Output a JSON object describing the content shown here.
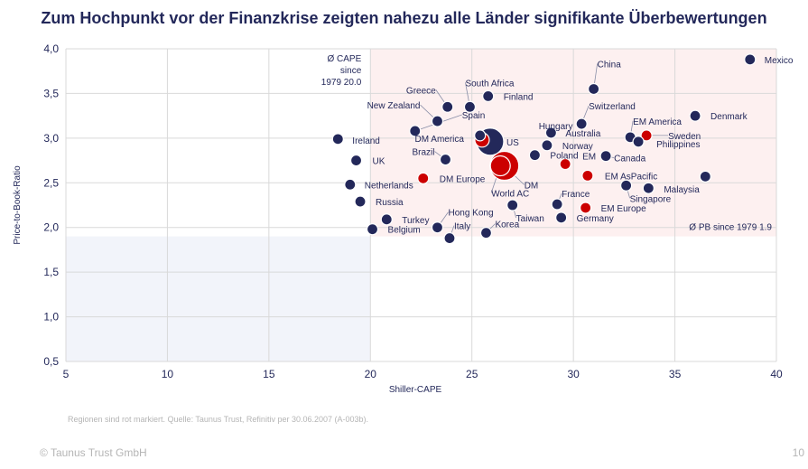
{
  "title": "Zum Hochpunkt vor der Finanzkrise zeigten nahezu alle Länder signifikante Überbewertungen",
  "source_note": "Regionen sind rot markiert. Quelle: Taunus Trust, Refinitiv per 30.06.2007 (A-003b).",
  "footer": "© Taunus Trust GmbH",
  "page_number": "10",
  "colors": {
    "country": "#23285a",
    "region": "#cc0000",
    "shade_high": "#fdf0f0",
    "shade_low": "#f2f4fa",
    "grid": "#d9d9d9",
    "text": "#23285a"
  },
  "chart_data": {
    "type": "scatter",
    "xlabel": "Shiller-CAPE",
    "ylabel": "Price-to-Book-Ratio",
    "xlim": [
      5,
      40
    ],
    "ylim": [
      0.5,
      4.0
    ],
    "xticks": [
      5,
      10,
      15,
      20,
      25,
      30,
      35,
      40
    ],
    "xtick_labels": [
      "5",
      "10",
      "15",
      "20",
      "25",
      "30",
      "35",
      "40"
    ],
    "yticks": [
      0.5,
      1.0,
      1.5,
      2.0,
      2.5,
      3.0,
      3.5,
      4.0
    ],
    "ytick_labels": [
      "0,5",
      "1,0",
      "1,5",
      "2,0",
      "2,5",
      "3,0",
      "3,5",
      "4,0"
    ],
    "cape_avg": 20.0,
    "pb_avg": 1.9,
    "cape_avg_label": [
      "Ø CAPE",
      "since",
      "1979 20.0"
    ],
    "pb_avg_label": "Ø PB since 1979 1.9",
    "points": [
      {
        "label": "Mexico",
        "x": 38.7,
        "y": 3.88,
        "type": "country"
      },
      {
        "label": "China",
        "x": 31.0,
        "y": 3.55,
        "type": "country"
      },
      {
        "label": "South Africa",
        "x": 24.9,
        "y": 3.35,
        "type": "country"
      },
      {
        "label": "Finland",
        "x": 25.8,
        "y": 3.47,
        "type": "country"
      },
      {
        "label": "Greece",
        "x": 23.8,
        "y": 3.35,
        "type": "country"
      },
      {
        "label": "New Zealand",
        "x": 23.3,
        "y": 3.19,
        "type": "country"
      },
      {
        "label": "Ireland",
        "x": 18.4,
        "y": 2.99,
        "type": "country"
      },
      {
        "label": "Spain",
        "x": 22.2,
        "y": 3.08,
        "type": "country"
      },
      {
        "label": "Hungary",
        "x": 25.4,
        "y": 3.03,
        "type": "country"
      },
      {
        "label": "DM America",
        "x": 25.5,
        "y": 2.98,
        "type": "region",
        "size": 8
      },
      {
        "label": "US",
        "x": 25.9,
        "y": 2.96,
        "type": "country",
        "size": 15
      },
      {
        "label": "Switzerland",
        "x": 30.4,
        "y": 3.16,
        "type": "country"
      },
      {
        "label": "Denmark",
        "x": 36.0,
        "y": 3.25,
        "type": "country"
      },
      {
        "label": "Australia",
        "x": 28.9,
        "y": 3.06,
        "type": "country"
      },
      {
        "label": "EM America",
        "x": 32.8,
        "y": 3.01,
        "type": "country"
      },
      {
        "label": "Sweden",
        "x": 33.6,
        "y": 3.03,
        "type": "region"
      },
      {
        "label": "Philippines",
        "x": 33.2,
        "y": 2.96,
        "type": "country"
      },
      {
        "label": "Norway",
        "x": 28.7,
        "y": 2.92,
        "type": "country"
      },
      {
        "label": "Brazil",
        "x": 23.7,
        "y": 2.76,
        "type": "country"
      },
      {
        "label": "UK",
        "x": 19.3,
        "y": 2.75,
        "type": "country"
      },
      {
        "label": "Poland",
        "x": 28.1,
        "y": 2.81,
        "type": "country"
      },
      {
        "label": "Canada",
        "x": 31.6,
        "y": 2.8,
        "type": "country"
      },
      {
        "label": "EM",
        "x": 29.6,
        "y": 2.71,
        "type": "region"
      },
      {
        "label": "DM Europe",
        "x": 22.6,
        "y": 2.55,
        "type": "region"
      },
      {
        "label": "DM",
        "x": 26.6,
        "y": 2.69,
        "type": "region",
        "size": 16
      },
      {
        "label": "World AC",
        "x": 26.4,
        "y": 2.69,
        "type": "region",
        "size": 11
      },
      {
        "label": "EM AsPacific",
        "x": 30.7,
        "y": 2.58,
        "type": "region"
      },
      {
        "label": "Singapore",
        "x": 32.6,
        "y": 2.47,
        "type": "country"
      },
      {
        "label": "Malaysia",
        "x": 33.7,
        "y": 2.44,
        "type": "country"
      },
      {
        "label": "Netherlands",
        "x": 19.0,
        "y": 2.48,
        "type": "country"
      },
      {
        "label": "Russia",
        "x": 19.5,
        "y": 2.29,
        "type": "country"
      },
      {
        "label": "France",
        "x": 29.2,
        "y": 2.26,
        "type": "country"
      },
      {
        "label": "EM Europe",
        "x": 30.6,
        "y": 2.22,
        "type": "region"
      },
      {
        "label": "Taiwan",
        "x": 27.0,
        "y": 2.25,
        "type": "country"
      },
      {
        "label": "Hong Kong",
        "x": 23.3,
        "y": 2.0,
        "type": "country"
      },
      {
        "label": "Turkey",
        "x": 20.8,
        "y": 2.09,
        "type": "country"
      },
      {
        "label": "Belgium",
        "x": 20.1,
        "y": 1.98,
        "type": "country"
      },
      {
        "label": "Italy",
        "x": 23.9,
        "y": 1.88,
        "type": "country"
      },
      {
        "label": "Korea",
        "x": 25.7,
        "y": 1.94,
        "type": "country"
      },
      {
        "label": "Germany",
        "x": 29.4,
        "y": 2.11,
        "type": "country"
      },
      {
        "label": "",
        "x": 36.5,
        "y": 2.57,
        "type": "country"
      }
    ]
  }
}
